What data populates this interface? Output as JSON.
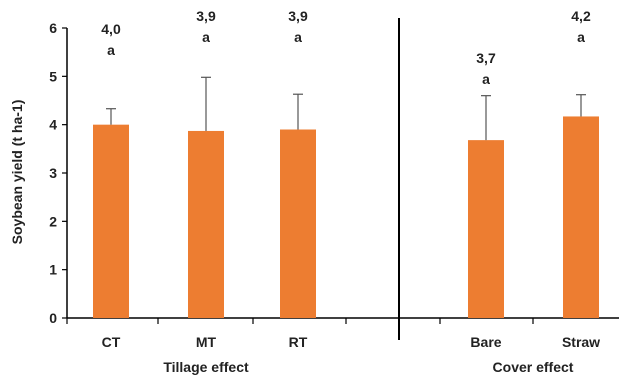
{
  "chart_data": {
    "type": "bar",
    "ylabel": "Soybean yield (t ha-1)",
    "ylim": [
      0,
      6
    ],
    "yticks": [
      "0",
      "1",
      "2",
      "3",
      "4",
      "5",
      "6"
    ],
    "grid": false,
    "bar_color": "#ed7d31",
    "categories": [
      "CT",
      "MT",
      "RT",
      "Bare",
      "Straw"
    ],
    "values": [
      4.0,
      3.87,
      3.9,
      3.68,
      4.17
    ],
    "error_upper": [
      4.33,
      4.98,
      4.63,
      4.6,
      4.62
    ],
    "labels": [
      "4,0",
      "3,9",
      "3,9",
      "3,7",
      "4,2"
    ],
    "significance": [
      "a",
      "a",
      "a",
      "a",
      "a"
    ],
    "groups": [
      {
        "name": "Tillage effect",
        "categories": [
          "CT",
          "MT",
          "RT"
        ]
      },
      {
        "name": "Cover effect",
        "categories": [
          "Bare",
          "Straw"
        ]
      }
    ]
  }
}
